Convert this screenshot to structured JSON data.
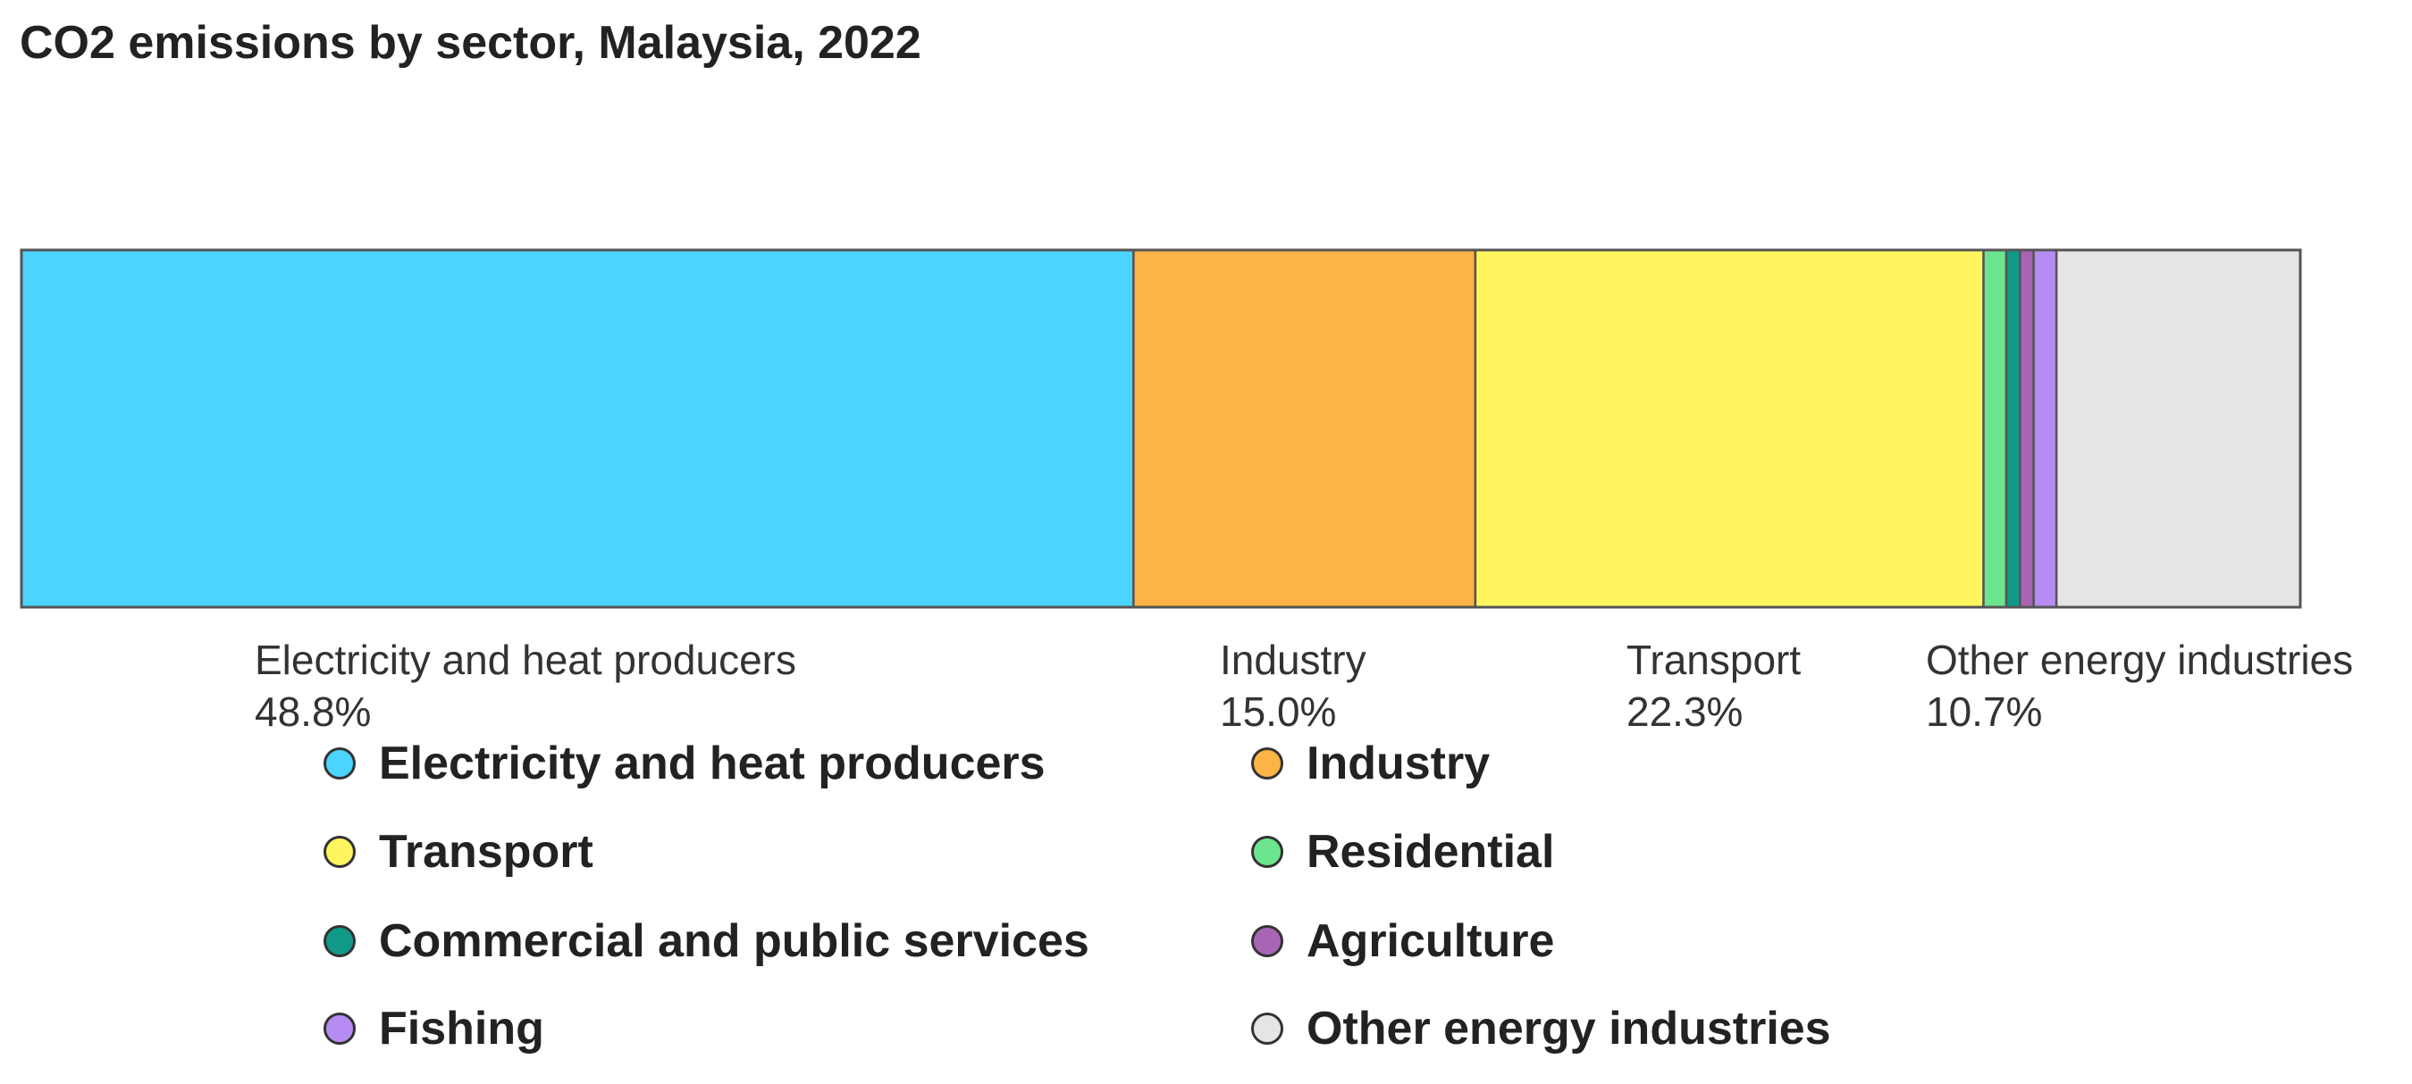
{
  "chart_data": {
    "type": "bar",
    "orientation": "horizontal-stacked-100",
    "title": "CO2 emissions by sector, Malaysia, 2022",
    "unit": "%",
    "series": [
      {
        "name": "Electricity and heat producers",
        "value": 48.8,
        "color": "#4ad4ff",
        "label_value": "48.8%"
      },
      {
        "name": "Industry",
        "value": 15.0,
        "color": "#feb346",
        "label_value": "15.0%"
      },
      {
        "name": "Transport",
        "value": 22.3,
        "color": "#fff55e",
        "label_value": "22.3%"
      },
      {
        "name": "Residential",
        "value": 1.0,
        "color": "#6de58f",
        "label_value": null
      },
      {
        "name": "Commercial and public services",
        "value": 0.6,
        "color": "#0f9a88",
        "label_value": null
      },
      {
        "name": "Agriculture",
        "value": 0.6,
        "color": "#a865b5",
        "label_value": null
      },
      {
        "name": "Fishing",
        "value": 1.0,
        "color": "#b68cf2",
        "label_value": null
      },
      {
        "name": "Other energy industries",
        "value": 10.7,
        "color": "#e5e5e5",
        "label_value": "10.7%"
      }
    ],
    "legend": {
      "placement": "bottom",
      "columns": 2
    },
    "grid": false
  }
}
